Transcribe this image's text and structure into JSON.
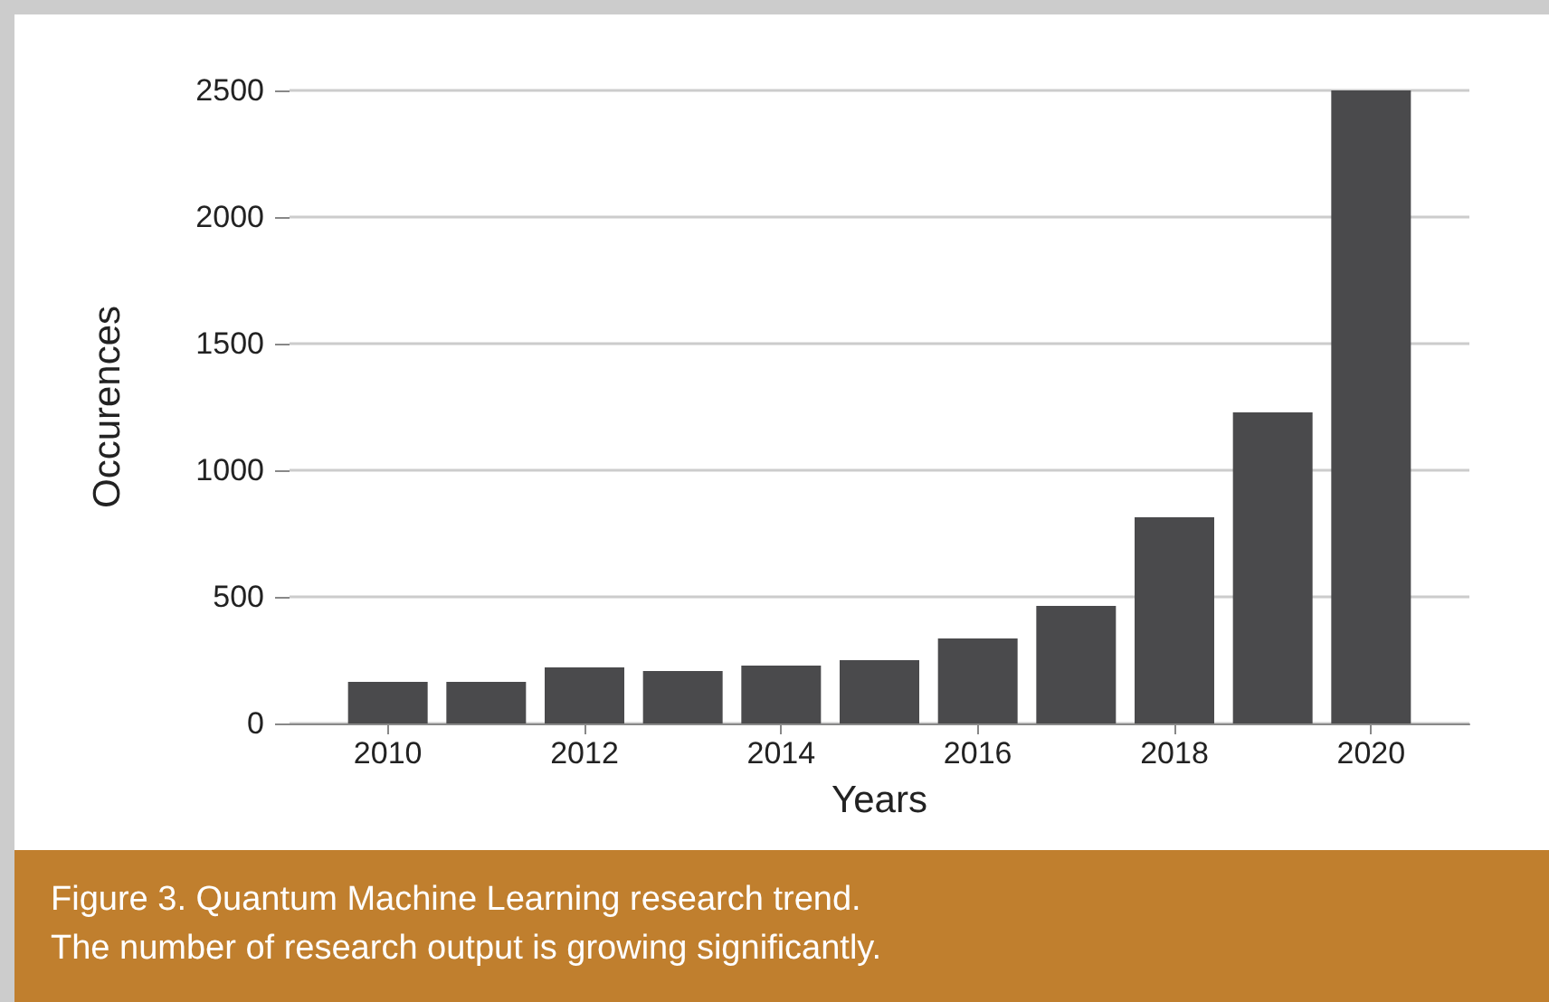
{
  "chart_data": {
    "type": "bar",
    "ylabel": "Occurences",
    "xlabel": "Years",
    "x": [
      2010,
      2011,
      2012,
      2013,
      2014,
      2015,
      2016,
      2017,
      2018,
      2019,
      2020
    ],
    "values": [
      164,
      164,
      221,
      207,
      229,
      250,
      336,
      464,
      814,
      1229,
      2500
    ],
    "color": "#4a4a4c",
    "xlim": [
      2009,
      2021
    ],
    "xticks": [
      2010,
      2012,
      2014,
      2016,
      2018,
      2020
    ],
    "ylim": [
      0,
      2500
    ],
    "yticks": [
      0,
      500,
      1000,
      1500,
      2000,
      2500
    ],
    "grid": "y",
    "annotations": [
      "Figure 3. Quantum Machine Learning research trend.",
      "The number of research output is growing significantly."
    ]
  }
}
